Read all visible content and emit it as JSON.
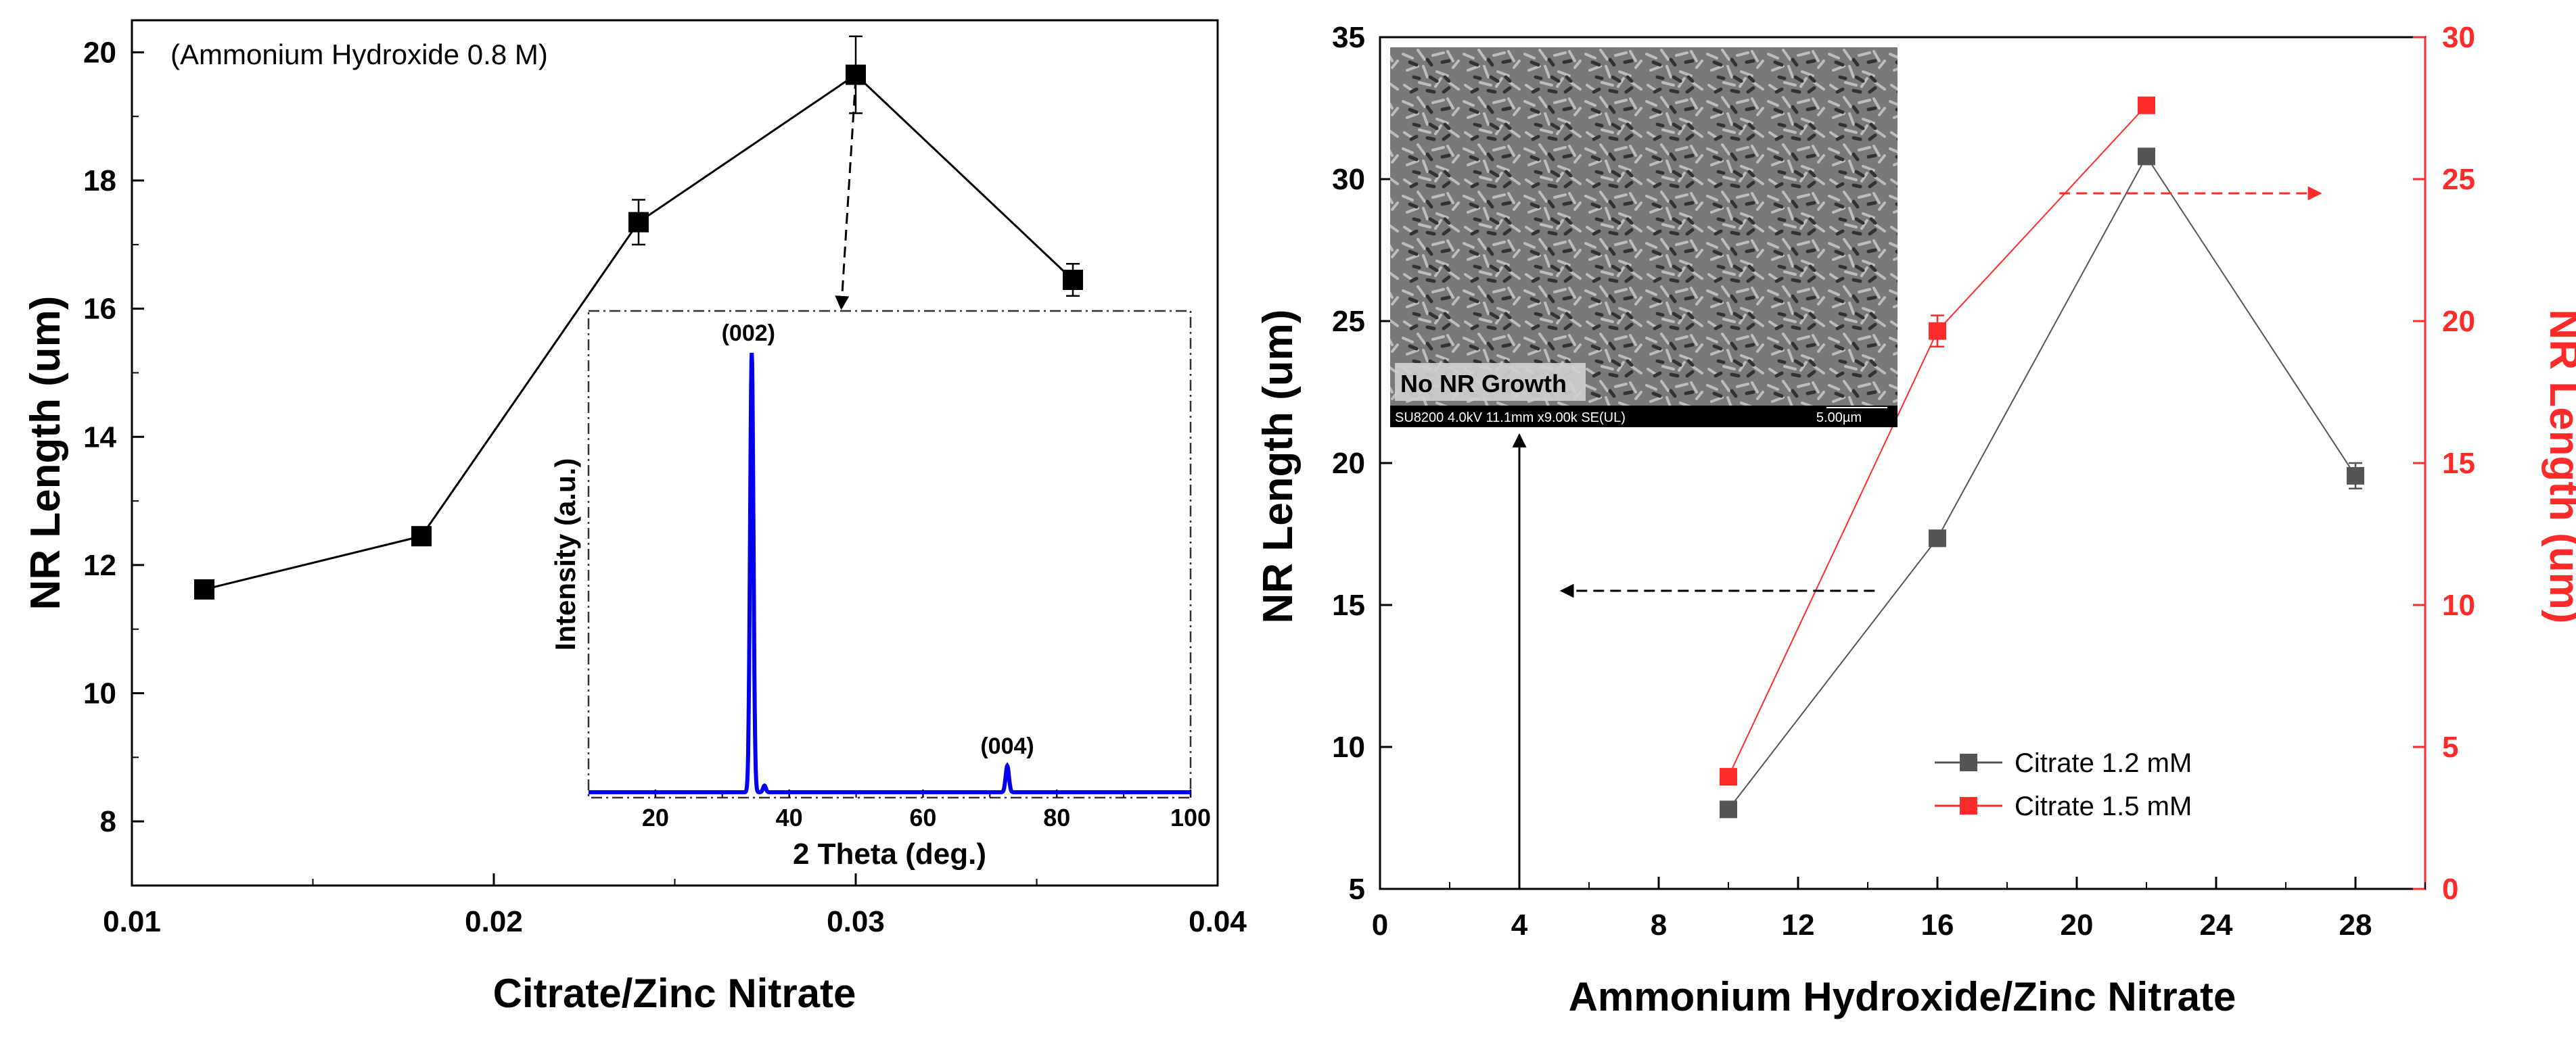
{
  "chart_data": [
    {
      "type": "line",
      "id": "left",
      "title": "",
      "annotation": "(Ammonium Hydroxide 0.8 M)",
      "xlabel": "Citrate/Zinc Nitrate",
      "ylabel": "NR Length (um)",
      "xlim": [
        0.01,
        0.04
      ],
      "ylim": [
        7,
        20.5
      ],
      "xticks": [
        0.01,
        0.02,
        0.03,
        0.04
      ],
      "xtick_labels": [
        "0.01",
        "0.02",
        "0.03",
        "0.04"
      ],
      "xminor": [
        0.015,
        0.025,
        0.035
      ],
      "yticks": [
        8,
        10,
        12,
        14,
        16,
        18,
        20
      ],
      "ytick_labels": [
        "8",
        "10",
        "12",
        "14",
        "16",
        "18",
        "20"
      ],
      "series": [
        {
          "name": "NR Length",
          "color": "#000000",
          "x": [
            0.012,
            0.018,
            0.024,
            0.03,
            0.036
          ],
          "y": [
            11.62,
            12.45,
            17.35,
            19.65,
            16.45
          ],
          "err": [
            0.0,
            0.0,
            0.35,
            0.6,
            0.25
          ]
        }
      ],
      "arrow": {
        "from": [
          0.03,
          19.6
        ],
        "to": [
          0.0296,
          16.0
        ],
        "style": "dashed"
      }
    },
    {
      "type": "line",
      "id": "inset-xrd",
      "xlabel": "2 Theta (deg.)",
      "ylabel": "Intensity (a.u.)",
      "xlim": [
        10,
        100
      ],
      "xticks": [
        20,
        40,
        60,
        80,
        100
      ],
      "xtick_labels": [
        "20",
        "40",
        "60",
        "80",
        "100"
      ],
      "color": "#0000ee",
      "baseline": 0.0,
      "peaks": [
        {
          "x": 34.4,
          "height": 1.0,
          "width": 0.7,
          "label": "(002)"
        },
        {
          "x": 72.6,
          "height": 0.06,
          "width": 0.7,
          "label": "(004)"
        },
        {
          "x": 36.3,
          "height": 0.015,
          "width": 0.6,
          "label": ""
        }
      ]
    },
    {
      "type": "line",
      "id": "right",
      "xlabel": "Ammonium Hydroxide/Zinc Nitrate",
      "ylabel": "NR Length (um)",
      "y2label": "NR Length (um)",
      "xlim": [
        0,
        30
      ],
      "ylim": [
        5,
        35
      ],
      "y2lim": [
        0,
        30
      ],
      "xticks": [
        0,
        4,
        8,
        12,
        16,
        20,
        24,
        28
      ],
      "xtick_labels": [
        "0",
        "4",
        "8",
        "12",
        "16",
        "20",
        "24",
        "28"
      ],
      "xminor": [
        2,
        6,
        10,
        14,
        18,
        22,
        26,
        30
      ],
      "yticks": [
        5,
        10,
        15,
        20,
        25,
        30,
        35
      ],
      "ytick_labels": [
        "5",
        "10",
        "15",
        "20",
        "25",
        "30",
        "35"
      ],
      "y2ticks": [
        0,
        5,
        10,
        15,
        20,
        25,
        30
      ],
      "y2tick_labels": [
        "0",
        "5",
        "10",
        "15",
        "20",
        "25",
        "30"
      ],
      "series": [
        {
          "name": "Citrate 1.2 mM",
          "axis": "left",
          "color": "#555555",
          "x": [
            10,
            16,
            22,
            28
          ],
          "y": [
            7.8,
            17.35,
            30.8,
            19.55
          ],
          "err": [
            0.0,
            0.0,
            0.0,
            0.45
          ]
        },
        {
          "name": "Citrate 1.5 mM",
          "axis": "right",
          "color": "#ff2a2a",
          "x": [
            10,
            16,
            22
          ],
          "y": [
            3.95,
            19.65,
            27.6
          ],
          "err": [
            0.0,
            0.55,
            0.0
          ]
        }
      ],
      "arrows": [
        {
          "axis": "left",
          "from": [
            14.2,
            15.5
          ],
          "to": [
            5.2,
            15.5
          ],
          "color": "#000000",
          "style": "dashed"
        },
        {
          "axis": "right",
          "from": [
            19.5,
            24.5
          ],
          "to": [
            27.0,
            24.5
          ],
          "color": "#ff2a2a",
          "style": "dashed"
        },
        {
          "axis": "left",
          "from": [
            4.0,
            5.0
          ],
          "to": [
            4.0,
            21.0
          ],
          "color": "#000000",
          "style": "solid"
        }
      ],
      "inset": {
        "label": "No NR Growth",
        "caption": "SU8200 4.0kV 11.1mm x9.00k SE(UL)",
        "scale": "5.00µm"
      }
    }
  ]
}
